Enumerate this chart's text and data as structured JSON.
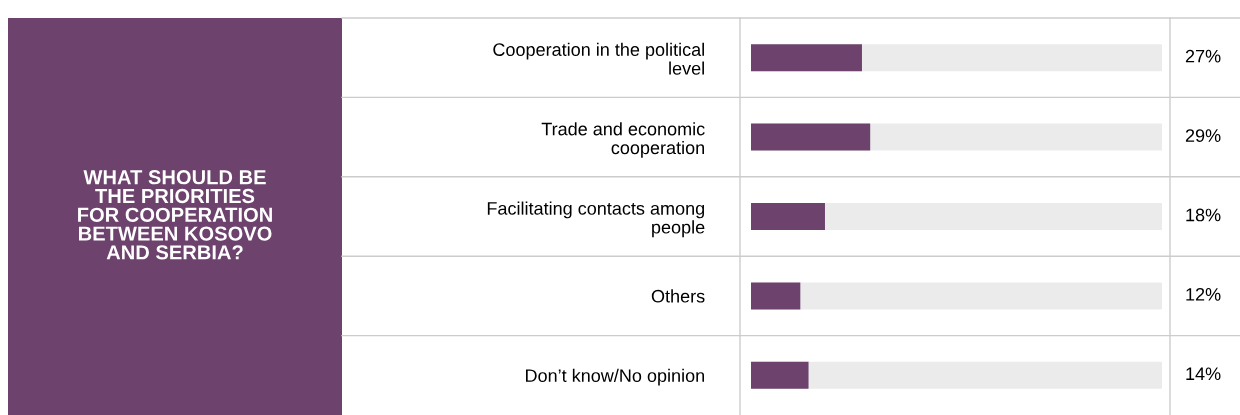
{
  "chart_data": {
    "type": "bar",
    "orientation": "horizontal",
    "title": "WHAT SHOULD BE THE PRIORITIES FOR COOPERATION BETWEEN KOSOVO AND SERBIA?",
    "categories": [
      "Cooperation in the political level",
      "Trade and economic cooperation",
      "Facilitating contacts among people",
      "Others",
      "Don’t know/No opinion"
    ],
    "values": [
      27,
      29,
      18,
      12,
      14
    ],
    "value_labels": [
      "27%",
      "29%",
      "18%",
      "12%",
      "14%"
    ],
    "color": "#6d436e",
    "xlim": [
      0,
      100
    ],
    "tick_labels": "y",
    "grid": false,
    "legend": false
  }
}
